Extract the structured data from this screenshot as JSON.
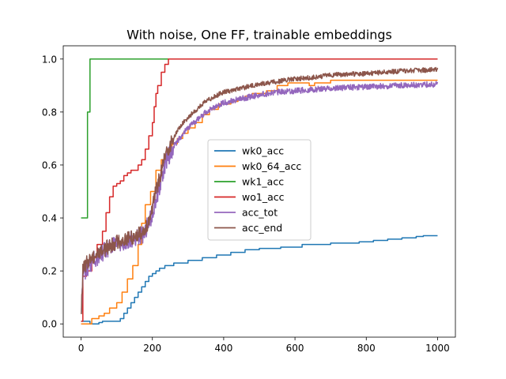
{
  "chart_data": {
    "type": "line",
    "title": "With noise, One FF, trainable embeddings",
    "xlabel": "",
    "ylabel": "",
    "xlim": [
      -50,
      1050
    ],
    "ylim": [
      -0.05,
      1.05
    ],
    "x_ticks": [
      0,
      200,
      400,
      600,
      800,
      1000
    ],
    "y_ticks": [
      0.0,
      0.2,
      0.4,
      0.6,
      0.8,
      1.0
    ],
    "grid": false,
    "legend_position": "center-right",
    "series": [
      {
        "name": "wk0_acc",
        "color": "#1f77b4",
        "style": "step",
        "points": [
          [
            0,
            0.01
          ],
          [
            20,
            0.01
          ],
          [
            25,
            0.0
          ],
          [
            50,
            0.005
          ],
          [
            60,
            0.01
          ],
          [
            100,
            0.01
          ],
          [
            110,
            0.02
          ],
          [
            120,
            0.04
          ],
          [
            130,
            0.06
          ],
          [
            140,
            0.08
          ],
          [
            150,
            0.1
          ],
          [
            160,
            0.12
          ],
          [
            170,
            0.14
          ],
          [
            180,
            0.16
          ],
          [
            190,
            0.18
          ],
          [
            200,
            0.19
          ],
          [
            210,
            0.2
          ],
          [
            220,
            0.21
          ],
          [
            235,
            0.22
          ],
          [
            260,
            0.23
          ],
          [
            300,
            0.24
          ],
          [
            340,
            0.25
          ],
          [
            380,
            0.26
          ],
          [
            420,
            0.27
          ],
          [
            460,
            0.28
          ],
          [
            500,
            0.285
          ],
          [
            560,
            0.29
          ],
          [
            620,
            0.3
          ],
          [
            700,
            0.305
          ],
          [
            780,
            0.31
          ],
          [
            820,
            0.315
          ],
          [
            860,
            0.32
          ],
          [
            900,
            0.325
          ],
          [
            940,
            0.33
          ],
          [
            960,
            0.333
          ],
          [
            1000,
            0.333
          ]
        ]
      },
      {
        "name": "wk0_64_acc",
        "color": "#ff7f0e",
        "style": "step",
        "points": [
          [
            0,
            0.0
          ],
          [
            10,
            0.0
          ],
          [
            30,
            0.02
          ],
          [
            50,
            0.03
          ],
          [
            65,
            0.04
          ],
          [
            80,
            0.06
          ],
          [
            100,
            0.08
          ],
          [
            115,
            0.12
          ],
          [
            130,
            0.17
          ],
          [
            145,
            0.22
          ],
          [
            160,
            0.3
          ],
          [
            170,
            0.38
          ],
          [
            180,
            0.45
          ],
          [
            195,
            0.5
          ],
          [
            210,
            0.58
          ],
          [
            225,
            0.62
          ],
          [
            240,
            0.66
          ],
          [
            255,
            0.68
          ],
          [
            270,
            0.7
          ],
          [
            285,
            0.72
          ],
          [
            300,
            0.74
          ],
          [
            320,
            0.76
          ],
          [
            340,
            0.79
          ],
          [
            360,
            0.81
          ],
          [
            385,
            0.83
          ],
          [
            420,
            0.84
          ],
          [
            440,
            0.85
          ],
          [
            460,
            0.86
          ],
          [
            480,
            0.87
          ],
          [
            500,
            0.87
          ],
          [
            520,
            0.88
          ],
          [
            550,
            0.9
          ],
          [
            580,
            0.91
          ],
          [
            620,
            0.91
          ],
          [
            640,
            0.9
          ],
          [
            655,
            0.91
          ],
          [
            680,
            0.91
          ],
          [
            700,
            0.92
          ],
          [
            1000,
            0.92
          ]
        ]
      },
      {
        "name": "wk1_acc",
        "color": "#2ca02c",
        "style": "step",
        "points": [
          [
            0,
            0.4
          ],
          [
            15,
            0.4
          ],
          [
            18,
            0.8
          ],
          [
            23,
            0.8
          ],
          [
            25,
            1.0
          ],
          [
            1000,
            1.0
          ]
        ]
      },
      {
        "name": "wo1_acc",
        "color": "#d62728",
        "style": "step",
        "points": [
          [
            0,
            0.01
          ],
          [
            5,
            0.18
          ],
          [
            15,
            0.2
          ],
          [
            30,
            0.25
          ],
          [
            45,
            0.3
          ],
          [
            60,
            0.35
          ],
          [
            70,
            0.42
          ],
          [
            80,
            0.48
          ],
          [
            90,
            0.52
          ],
          [
            100,
            0.53
          ],
          [
            110,
            0.54
          ],
          [
            120,
            0.56
          ],
          [
            130,
            0.57
          ],
          [
            140,
            0.58
          ],
          [
            150,
            0.58
          ],
          [
            160,
            0.6
          ],
          [
            170,
            0.62
          ],
          [
            180,
            0.66
          ],
          [
            190,
            0.71
          ],
          [
            200,
            0.76
          ],
          [
            205,
            0.82
          ],
          [
            210,
            0.87
          ],
          [
            215,
            0.9
          ],
          [
            225,
            0.95
          ],
          [
            235,
            0.98
          ],
          [
            245,
            1.0
          ],
          [
            1000,
            1.0
          ]
        ]
      },
      {
        "name": "acc_tot",
        "color": "#9467bd",
        "style": "noisy",
        "noise": 0.022,
        "points": [
          [
            0,
            0.02
          ],
          [
            5,
            0.18
          ],
          [
            20,
            0.22
          ],
          [
            50,
            0.26
          ],
          [
            100,
            0.3
          ],
          [
            150,
            0.32
          ],
          [
            175,
            0.34
          ],
          [
            190,
            0.38
          ],
          [
            200,
            0.42
          ],
          [
            210,
            0.47
          ],
          [
            220,
            0.52
          ],
          [
            230,
            0.58
          ],
          [
            240,
            0.62
          ],
          [
            255,
            0.66
          ],
          [
            275,
            0.7
          ],
          [
            300,
            0.74
          ],
          [
            325,
            0.77
          ],
          [
            350,
            0.8
          ],
          [
            375,
            0.82
          ],
          [
            400,
            0.835
          ],
          [
            450,
            0.85
          ],
          [
            500,
            0.865
          ],
          [
            550,
            0.875
          ],
          [
            600,
            0.88
          ],
          [
            650,
            0.885
          ],
          [
            700,
            0.89
          ],
          [
            800,
            0.895
          ],
          [
            900,
            0.9
          ],
          [
            1000,
            0.905
          ]
        ]
      },
      {
        "name": "acc_end",
        "color": "#8c564b",
        "style": "noisy",
        "noise": 0.018,
        "points": [
          [
            0,
            0.02
          ],
          [
            5,
            0.2
          ],
          [
            20,
            0.24
          ],
          [
            50,
            0.27
          ],
          [
            100,
            0.31
          ],
          [
            150,
            0.33
          ],
          [
            175,
            0.35
          ],
          [
            190,
            0.39
          ],
          [
            200,
            0.44
          ],
          [
            210,
            0.5
          ],
          [
            220,
            0.55
          ],
          [
            230,
            0.6
          ],
          [
            240,
            0.65
          ],
          [
            255,
            0.69
          ],
          [
            275,
            0.74
          ],
          [
            300,
            0.78
          ],
          [
            325,
            0.81
          ],
          [
            350,
            0.84
          ],
          [
            375,
            0.86
          ],
          [
            400,
            0.875
          ],
          [
            450,
            0.89
          ],
          [
            500,
            0.905
          ],
          [
            550,
            0.915
          ],
          [
            600,
            0.925
          ],
          [
            650,
            0.93
          ],
          [
            700,
            0.94
          ],
          [
            800,
            0.945
          ],
          [
            900,
            0.955
          ],
          [
            1000,
            0.96
          ]
        ]
      }
    ]
  }
}
